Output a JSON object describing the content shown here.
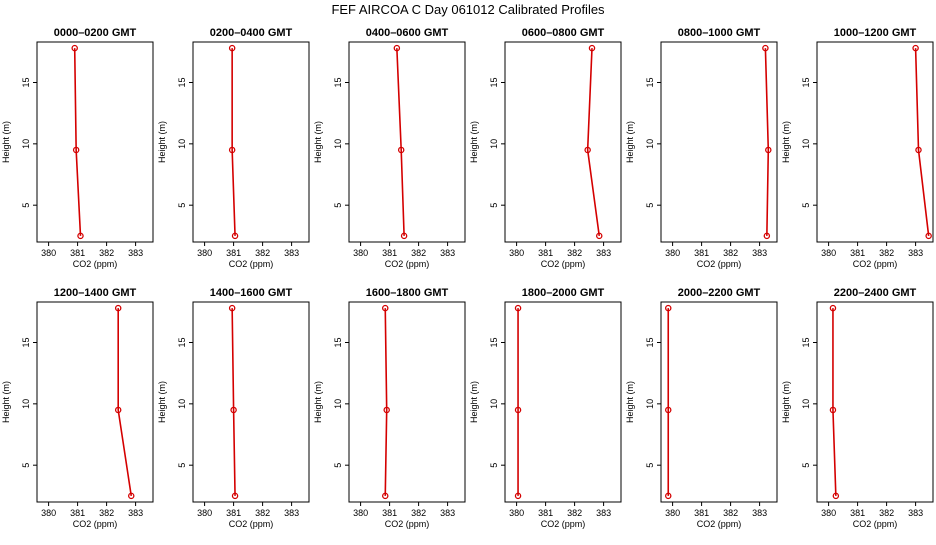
{
  "title": "FEF AIRCOA C  Day 061012  Calibrated Profiles",
  "xlabel": "CO2 (ppm)",
  "ylabel": "Height (m)",
  "colors": {
    "series": "#d40000",
    "axis": "#000000"
  },
  "chart_data": {
    "type": "line",
    "xlim": [
      379.6,
      383.6
    ],
    "ylim": [
      2,
      18.3
    ],
    "x_ticks": [
      380,
      381,
      382,
      383
    ],
    "y_ticks": [
      5,
      10,
      15
    ],
    "panels": [
      {
        "title": "0000–0200 GMT",
        "points": [
          {
            "x": 381.1,
            "y": 2.5
          },
          {
            "x": 380.95,
            "y": 9.5
          },
          {
            "x": 380.9,
            "y": 17.8
          }
        ]
      },
      {
        "title": "0200–0400 GMT",
        "points": [
          {
            "x": 381.05,
            "y": 2.5
          },
          {
            "x": 380.95,
            "y": 9.5
          },
          {
            "x": 380.95,
            "y": 17.8
          }
        ]
      },
      {
        "title": "0400–0600 GMT",
        "points": [
          {
            "x": 381.5,
            "y": 2.5
          },
          {
            "x": 381.4,
            "y": 9.5
          },
          {
            "x": 381.25,
            "y": 17.8
          }
        ]
      },
      {
        "title": "0600–0800 GMT",
        "points": [
          {
            "x": 382.85,
            "y": 2.5
          },
          {
            "x": 382.45,
            "y": 9.5
          },
          {
            "x": 382.6,
            "y": 17.8
          }
        ]
      },
      {
        "title": "0800–1000 GMT",
        "points": [
          {
            "x": 383.25,
            "y": 2.5
          },
          {
            "x": 383.3,
            "y": 9.5
          },
          {
            "x": 383.2,
            "y": 17.8
          }
        ]
      },
      {
        "title": "1000–1200 GMT",
        "points": [
          {
            "x": 383.45,
            "y": 2.5
          },
          {
            "x": 383.1,
            "y": 9.5
          },
          {
            "x": 383.0,
            "y": 17.8
          }
        ]
      },
      {
        "title": "1200–1400 GMT",
        "points": [
          {
            "x": 382.85,
            "y": 2.5
          },
          {
            "x": 382.4,
            "y": 9.5
          },
          {
            "x": 382.4,
            "y": 17.8
          }
        ]
      },
      {
        "title": "1400–1600 GMT",
        "points": [
          {
            "x": 381.05,
            "y": 2.5
          },
          {
            "x": 381.0,
            "y": 9.5
          },
          {
            "x": 380.95,
            "y": 17.8
          }
        ]
      },
      {
        "title": "1600–1800 GMT",
        "points": [
          {
            "x": 380.85,
            "y": 2.5
          },
          {
            "x": 380.9,
            "y": 9.5
          },
          {
            "x": 380.85,
            "y": 17.8
          }
        ]
      },
      {
        "title": "1800–2000 GMT",
        "points": [
          {
            "x": 380.05,
            "y": 2.5
          },
          {
            "x": 380.05,
            "y": 9.5
          },
          {
            "x": 380.05,
            "y": 17.8
          }
        ]
      },
      {
        "title": "2000–2200 GMT",
        "points": [
          {
            "x": 379.85,
            "y": 2.5
          },
          {
            "x": 379.85,
            "y": 9.5
          },
          {
            "x": 379.85,
            "y": 17.8
          }
        ]
      },
      {
        "title": "2200–2400 GMT",
        "points": [
          {
            "x": 380.25,
            "y": 2.5
          },
          {
            "x": 380.15,
            "y": 9.5
          },
          {
            "x": 380.15,
            "y": 17.8
          }
        ]
      }
    ]
  }
}
